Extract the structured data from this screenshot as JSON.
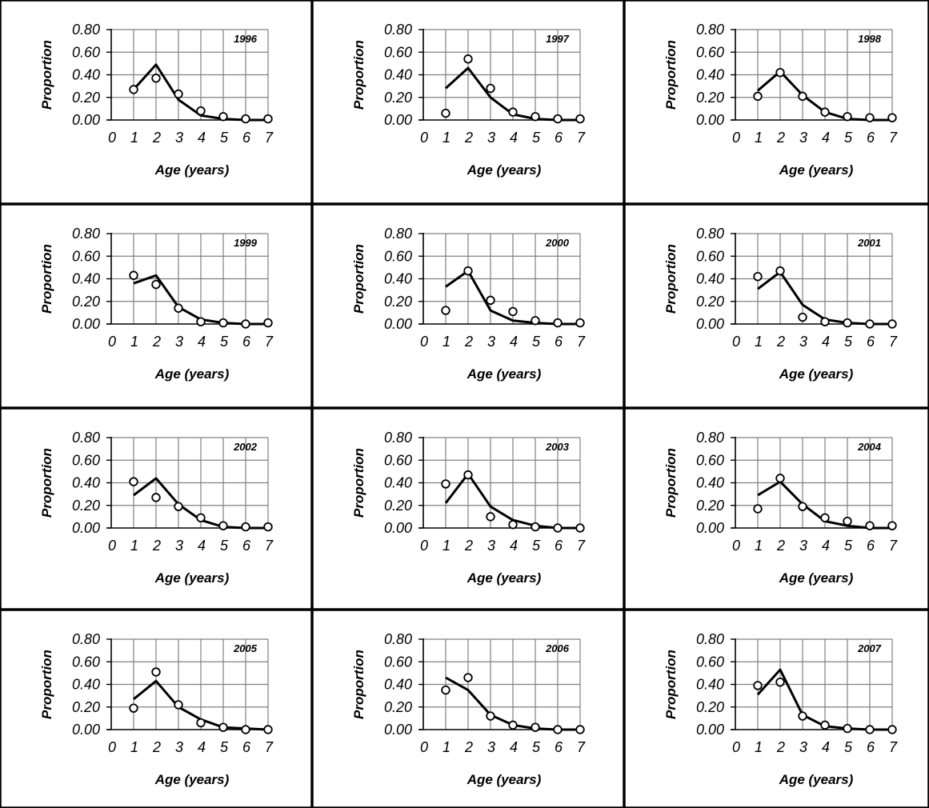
{
  "chart_data": [
    {
      "type": "line",
      "title": "1996",
      "xlabel": "Age (years)",
      "ylabel": "Proportion",
      "xlim": [
        0,
        7
      ],
      "ylim": [
        0,
        0.8
      ],
      "x_ticks": [
        "0",
        "1",
        "2",
        "3",
        "4",
        "5",
        "6",
        "7"
      ],
      "y_ticks": [
        "0.00",
        "0.20",
        "0.40",
        "0.60",
        "0.80"
      ],
      "grid": true,
      "series": [
        {
          "style": "line",
          "x": [
            1,
            2,
            3,
            4,
            5,
            6,
            7
          ],
          "y": [
            0.27,
            0.49,
            0.18,
            0.04,
            0.01,
            0.0,
            0.0
          ]
        },
        {
          "style": "markers",
          "x": [
            1,
            2,
            3,
            4,
            5,
            6,
            7
          ],
          "y": [
            0.27,
            0.37,
            0.23,
            0.08,
            0.03,
            0.01,
            0.01
          ]
        }
      ]
    },
    {
      "type": "line",
      "title": "1997",
      "xlabel": "Age (years)",
      "ylabel": "Proportion",
      "xlim": [
        0,
        7
      ],
      "ylim": [
        0,
        0.8
      ],
      "x_ticks": [
        "0",
        "1",
        "2",
        "3",
        "4",
        "5",
        "6",
        "7"
      ],
      "y_ticks": [
        "0.00",
        "0.20",
        "0.40",
        "0.60",
        "0.80"
      ],
      "grid": true,
      "series": [
        {
          "style": "line",
          "x": [
            1,
            2,
            3,
            4,
            5,
            6,
            7
          ],
          "y": [
            0.28,
            0.46,
            0.2,
            0.05,
            0.01,
            0.0,
            0.0
          ]
        },
        {
          "style": "markers",
          "x": [
            1,
            2,
            3,
            4,
            5,
            6,
            7
          ],
          "y": [
            0.06,
            0.54,
            0.28,
            0.07,
            0.03,
            0.01,
            0.01
          ]
        }
      ]
    },
    {
      "type": "line",
      "title": "1998",
      "xlabel": "Age (years)",
      "ylabel": "Proportion",
      "xlim": [
        0,
        7
      ],
      "ylim": [
        0,
        0.8
      ],
      "x_ticks": [
        "0",
        "1",
        "2",
        "3",
        "4",
        "5",
        "6",
        "7"
      ],
      "y_ticks": [
        "0.00",
        "0.20",
        "0.40",
        "0.60",
        "0.80"
      ],
      "grid": true,
      "series": [
        {
          "style": "line",
          "x": [
            1,
            2,
            3,
            4,
            5,
            6,
            7
          ],
          "y": [
            0.26,
            0.43,
            0.22,
            0.07,
            0.01,
            0.0,
            0.0
          ]
        },
        {
          "style": "markers",
          "x": [
            1,
            2,
            3,
            4,
            5,
            6,
            7
          ],
          "y": [
            0.21,
            0.42,
            0.21,
            0.07,
            0.03,
            0.02,
            0.02
          ]
        }
      ]
    },
    {
      "type": "line",
      "title": "1999",
      "xlabel": "Age (years)",
      "ylabel": "Proportion",
      "xlim": [
        0,
        7
      ],
      "ylim": [
        0,
        0.8
      ],
      "x_ticks": [
        "0",
        "1",
        "2",
        "3",
        "4",
        "5",
        "6",
        "7"
      ],
      "y_ticks": [
        "0.00",
        "0.20",
        "0.40",
        "0.60",
        "0.80"
      ],
      "grid": true,
      "series": [
        {
          "style": "line",
          "x": [
            1,
            2,
            3,
            4,
            5,
            6,
            7
          ],
          "y": [
            0.36,
            0.43,
            0.15,
            0.04,
            0.01,
            0.0,
            0.0
          ]
        },
        {
          "style": "markers",
          "x": [
            1,
            2,
            3,
            4,
            5,
            6,
            7
          ],
          "y": [
            0.43,
            0.35,
            0.14,
            0.02,
            0.01,
            0.0,
            0.01
          ]
        }
      ]
    },
    {
      "type": "line",
      "title": "2000",
      "xlabel": "Age (years)",
      "ylabel": "Proportion",
      "xlim": [
        0,
        7
      ],
      "ylim": [
        0,
        0.8
      ],
      "x_ticks": [
        "0",
        "1",
        "2",
        "3",
        "4",
        "5",
        "6",
        "7"
      ],
      "y_ticks": [
        "0.00",
        "0.20",
        "0.40",
        "0.60",
        "0.80"
      ],
      "grid": true,
      "series": [
        {
          "style": "line",
          "x": [
            1,
            2,
            3,
            4,
            5,
            6,
            7
          ],
          "y": [
            0.33,
            0.47,
            0.12,
            0.03,
            0.01,
            0.0,
            0.0
          ]
        },
        {
          "style": "markers",
          "x": [
            1,
            2,
            3,
            4,
            5,
            6,
            7
          ],
          "y": [
            0.12,
            0.47,
            0.21,
            0.11,
            0.03,
            0.01,
            0.01
          ]
        }
      ]
    },
    {
      "type": "line",
      "title": "2001",
      "xlabel": "Age (years)",
      "ylabel": "Proportion",
      "xlim": [
        0,
        7
      ],
      "ylim": [
        0,
        0.8
      ],
      "x_ticks": [
        "0",
        "1",
        "2",
        "3",
        "4",
        "5",
        "6",
        "7"
      ],
      "y_ticks": [
        "0.00",
        "0.20",
        "0.40",
        "0.60",
        "0.80"
      ],
      "grid": true,
      "series": [
        {
          "style": "line",
          "x": [
            1,
            2,
            3,
            4,
            5,
            6,
            7
          ],
          "y": [
            0.31,
            0.46,
            0.17,
            0.04,
            0.01,
            0.0,
            0.0
          ]
        },
        {
          "style": "markers",
          "x": [
            1,
            2,
            3,
            4,
            5,
            6,
            7
          ],
          "y": [
            0.42,
            0.47,
            0.06,
            0.02,
            0.01,
            0.0,
            0.0
          ]
        }
      ]
    },
    {
      "type": "line",
      "title": "2002",
      "xlabel": "Age (years)",
      "ylabel": "Proportion",
      "xlim": [
        0,
        7
      ],
      "ylim": [
        0,
        0.8
      ],
      "x_ticks": [
        "0",
        "1",
        "2",
        "3",
        "4",
        "5",
        "6",
        "7"
      ],
      "y_ticks": [
        "0.00",
        "0.20",
        "0.40",
        "0.60",
        "0.80"
      ],
      "grid": true,
      "series": [
        {
          "style": "line",
          "x": [
            1,
            2,
            3,
            4,
            5,
            6,
            7
          ],
          "y": [
            0.29,
            0.44,
            0.21,
            0.07,
            0.01,
            0.0,
            0.0
          ]
        },
        {
          "style": "markers",
          "x": [
            1,
            2,
            3,
            4,
            5,
            6,
            7
          ],
          "y": [
            0.41,
            0.27,
            0.19,
            0.09,
            0.02,
            0.01,
            0.01
          ]
        }
      ]
    },
    {
      "type": "line",
      "title": "2003",
      "xlabel": "Age (years)",
      "ylabel": "Proportion",
      "xlim": [
        0,
        7
      ],
      "ylim": [
        0,
        0.8
      ],
      "x_ticks": [
        "0",
        "1",
        "2",
        "3",
        "4",
        "5",
        "6",
        "7"
      ],
      "y_ticks": [
        "0.00",
        "0.20",
        "0.40",
        "0.60",
        "0.80"
      ],
      "grid": true,
      "series": [
        {
          "style": "line",
          "x": [
            1,
            2,
            3,
            4,
            5,
            6,
            7
          ],
          "y": [
            0.22,
            0.48,
            0.19,
            0.07,
            0.02,
            0.0,
            0.0
          ]
        },
        {
          "style": "markers",
          "x": [
            1,
            2,
            3,
            4,
            5,
            6,
            7
          ],
          "y": [
            0.39,
            0.47,
            0.1,
            0.03,
            0.01,
            0.0,
            0.0
          ]
        }
      ]
    },
    {
      "type": "line",
      "title": "2004",
      "xlabel": "Age (years)",
      "ylabel": "Proportion",
      "xlim": [
        0,
        7
      ],
      "ylim": [
        0,
        0.8
      ],
      "x_ticks": [
        "0",
        "1",
        "2",
        "3",
        "4",
        "5",
        "6",
        "7"
      ],
      "y_ticks": [
        "0.00",
        "0.20",
        "0.40",
        "0.60",
        "0.80"
      ],
      "grid": true,
      "series": [
        {
          "style": "line",
          "x": [
            1,
            2,
            3,
            4,
            5,
            6,
            7
          ],
          "y": [
            0.29,
            0.41,
            0.21,
            0.06,
            0.02,
            0.0,
            0.0
          ]
        },
        {
          "style": "markers",
          "x": [
            1,
            2,
            3,
            4,
            5,
            6,
            7
          ],
          "y": [
            0.17,
            0.44,
            0.19,
            0.09,
            0.06,
            0.02,
            0.02
          ]
        }
      ]
    },
    {
      "type": "line",
      "title": "2005",
      "xlabel": "Age (years)",
      "ylabel": "Proportion",
      "xlim": [
        0,
        7
      ],
      "ylim": [
        0,
        0.8
      ],
      "x_ticks": [
        "0",
        "1",
        "2",
        "3",
        "4",
        "5",
        "6",
        "7"
      ],
      "y_ticks": [
        "0.00",
        "0.20",
        "0.40",
        "0.60",
        "0.80"
      ],
      "grid": true,
      "series": [
        {
          "style": "line",
          "x": [
            1,
            2,
            3,
            4,
            5,
            6,
            7
          ],
          "y": [
            0.27,
            0.43,
            0.2,
            0.09,
            0.02,
            0.01,
            0.0
          ]
        },
        {
          "style": "markers",
          "x": [
            1,
            2,
            3,
            4,
            5,
            6,
            7
          ],
          "y": [
            0.19,
            0.51,
            0.22,
            0.06,
            0.02,
            0.0,
            0.0
          ]
        }
      ]
    },
    {
      "type": "line",
      "title": "2006",
      "xlabel": "Age (years)",
      "ylabel": "Proportion",
      "xlim": [
        0,
        7
      ],
      "ylim": [
        0,
        0.8
      ],
      "x_ticks": [
        "0",
        "1",
        "2",
        "3",
        "4",
        "5",
        "6",
        "7"
      ],
      "y_ticks": [
        "0.00",
        "0.20",
        "0.40",
        "0.60",
        "0.80"
      ],
      "grid": true,
      "series": [
        {
          "style": "line",
          "x": [
            1,
            2,
            3,
            4,
            5,
            6,
            7
          ],
          "y": [
            0.46,
            0.35,
            0.13,
            0.04,
            0.01,
            0.0,
            0.0
          ]
        },
        {
          "style": "markers",
          "x": [
            1,
            2,
            3,
            4,
            5,
            6,
            7
          ],
          "y": [
            0.35,
            0.46,
            0.12,
            0.04,
            0.02,
            0.0,
            0.0
          ]
        }
      ]
    },
    {
      "type": "line",
      "title": "2007",
      "xlabel": "Age (years)",
      "ylabel": "Proportion",
      "xlim": [
        0,
        7
      ],
      "ylim": [
        0,
        0.8
      ],
      "x_ticks": [
        "0",
        "1",
        "2",
        "3",
        "4",
        "5",
        "6",
        "7"
      ],
      "y_ticks": [
        "0.00",
        "0.20",
        "0.40",
        "0.60",
        "0.80"
      ],
      "grid": true,
      "series": [
        {
          "style": "line",
          "x": [
            1,
            2,
            3,
            4,
            5,
            6,
            7
          ],
          "y": [
            0.31,
            0.53,
            0.13,
            0.03,
            0.01,
            0.0,
            0.0
          ]
        },
        {
          "style": "markers",
          "x": [
            1,
            2,
            3,
            4,
            5,
            6,
            7
          ],
          "y": [
            0.39,
            0.42,
            0.12,
            0.04,
            0.01,
            0.0,
            0.0
          ]
        }
      ]
    }
  ],
  "colors": {
    "line": "#000000",
    "marker_fill": "#ffffff",
    "grid": "#808080",
    "axis": "#000000",
    "border": "#000000"
  }
}
